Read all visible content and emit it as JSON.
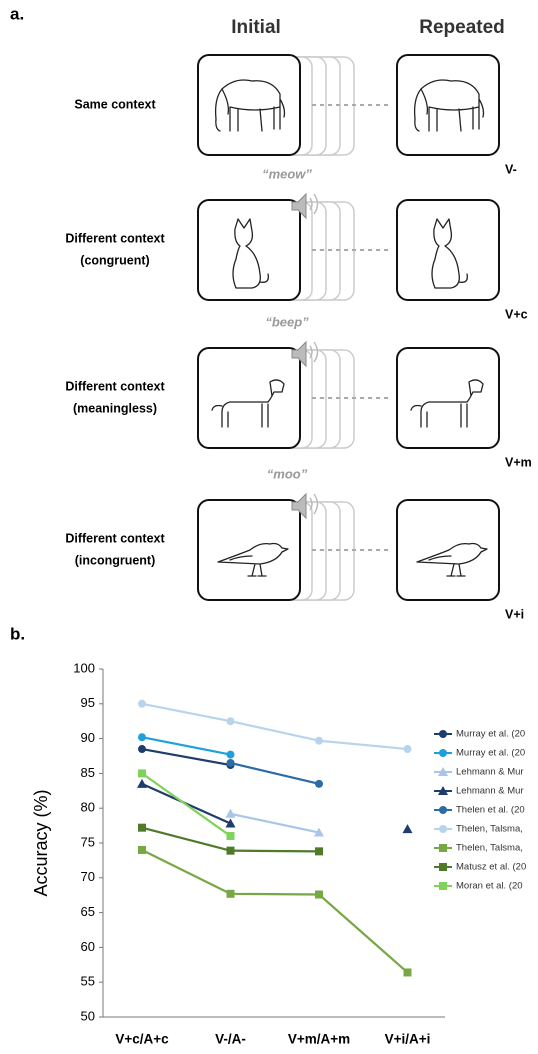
{
  "panel_a": {
    "label": "a.",
    "headers": [
      "Initial",
      "Repeated"
    ],
    "rows": [
      {
        "label": [
          "Same context"
        ],
        "code": "V-"
      },
      {
        "label": [
          "Different context",
          "(congruent)"
        ],
        "sound": "“meow”",
        "code": "V+c"
      },
      {
        "label": [
          "Different context",
          "(meaningless)"
        ],
        "sound": "“beep”",
        "code": "V+m"
      },
      {
        "label": [
          "Different context",
          "(incongruent)"
        ],
        "sound": "“moo”",
        "code": "V+i"
      }
    ]
  },
  "panel_b": {
    "label": "b."
  },
  "chart_data": {
    "type": "line",
    "ylabel": "Accuracy (%)",
    "categories": [
      "V+c/A+c",
      "V-/A-",
      "V+m/A+m",
      "V+i/A+i"
    ],
    "ylim": [
      50,
      100
    ],
    "yticks": [
      50,
      55,
      60,
      65,
      70,
      75,
      80,
      85,
      90,
      95,
      100
    ],
    "series": [
      {
        "name": "Murray et al. (20",
        "color": "#1f3d6b",
        "marker": "circle",
        "values": [
          88.5,
          86.2,
          null,
          null
        ]
      },
      {
        "name": "Murray et al. (20",
        "color": "#1ea0dc",
        "marker": "circle",
        "values": [
          90.2,
          87.7,
          null,
          null
        ]
      },
      {
        "name": "Lehmann & Mur",
        "color": "#a9c6e8",
        "marker": "triangle",
        "values": [
          null,
          79.2,
          76.5,
          null
        ]
      },
      {
        "name": "Lehmann & Mur",
        "color": "#1f3d6b",
        "marker": "triangle",
        "values": [
          83.5,
          77.8,
          null,
          77.0
        ]
      },
      {
        "name": "Thelen et al. (20",
        "color": "#2b6ca8",
        "marker": "circle",
        "values": [
          null,
          86.5,
          83.5,
          null
        ]
      },
      {
        "name": "Thelen, Talsma,",
        "color": "#b8d4ec",
        "marker": "circle",
        "values": [
          95.0,
          92.5,
          89.7,
          88.5
        ]
      },
      {
        "name": "Thelen, Talsma,",
        "color": "#77a843",
        "marker": "square",
        "values": [
          74.0,
          67.7,
          67.6,
          56.4
        ]
      },
      {
        "name": "Matusz et al. (20",
        "color": "#4f7a2a",
        "marker": "square",
        "values": [
          77.2,
          73.9,
          73.8,
          null
        ]
      },
      {
        "name": "Moran et al. (20",
        "color": "#7fd35a",
        "marker": "square",
        "values": [
          85.0,
          76.0,
          null,
          null
        ]
      }
    ]
  }
}
